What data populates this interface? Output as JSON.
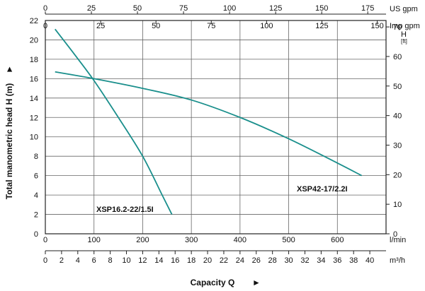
{
  "chart_data": {
    "type": "line",
    "title": "",
    "xlabel": "Capacity Q",
    "ylabel": "Total manometric head H (m)",
    "xlabel_arrow": "►",
    "ylabel_arrow": "►",
    "x_units": "l/min",
    "y_units": "m",
    "xlim": [
      0,
      700
    ],
    "ylim": [
      0,
      22
    ],
    "grid": true,
    "x_ticks": [
      100,
      200,
      300,
      400,
      500,
      600
    ],
    "y_ticks": [
      0,
      2,
      4,
      6,
      8,
      10,
      12,
      14,
      16,
      18,
      20,
      22
    ],
    "secondary_axes": {
      "top_us_gpm": {
        "unit": "US gpm",
        "ticks": [
          0,
          25,
          50,
          75,
          100,
          125,
          150,
          175
        ]
      },
      "top_imp_gpm": {
        "unit": "Imp gpm",
        "ticks": [
          0,
          25,
          50,
          75,
          100,
          125,
          150
        ]
      },
      "bottom_m3h": {
        "unit": "m³/h",
        "ticks": [
          0,
          2,
          4,
          6,
          8,
          10,
          12,
          14,
          16,
          18,
          20,
          22,
          24,
          26,
          28,
          30,
          32,
          34,
          36,
          38,
          40
        ]
      },
      "right_ft": {
        "unit_top": "H",
        "unit_bottom": "[ft]",
        "ticks": [
          0,
          10,
          20,
          30,
          40,
          50,
          60,
          70
        ]
      }
    },
    "series": [
      {
        "name": "XSP16.2-22/1.5I",
        "color": "#1a8f8c",
        "x": [
          20,
          60,
          100,
          150,
          200,
          240,
          260
        ],
        "y": [
          21.1,
          18.5,
          15.8,
          12.0,
          8.0,
          4.0,
          2.0
        ]
      },
      {
        "name": "XSP42-17/2.2I",
        "color": "#1a8f8c",
        "x": [
          20,
          100,
          200,
          300,
          400,
          500,
          600,
          650
        ],
        "y": [
          16.7,
          16.0,
          15.0,
          13.8,
          12.0,
          9.8,
          7.3,
          6.0
        ]
      }
    ]
  }
}
